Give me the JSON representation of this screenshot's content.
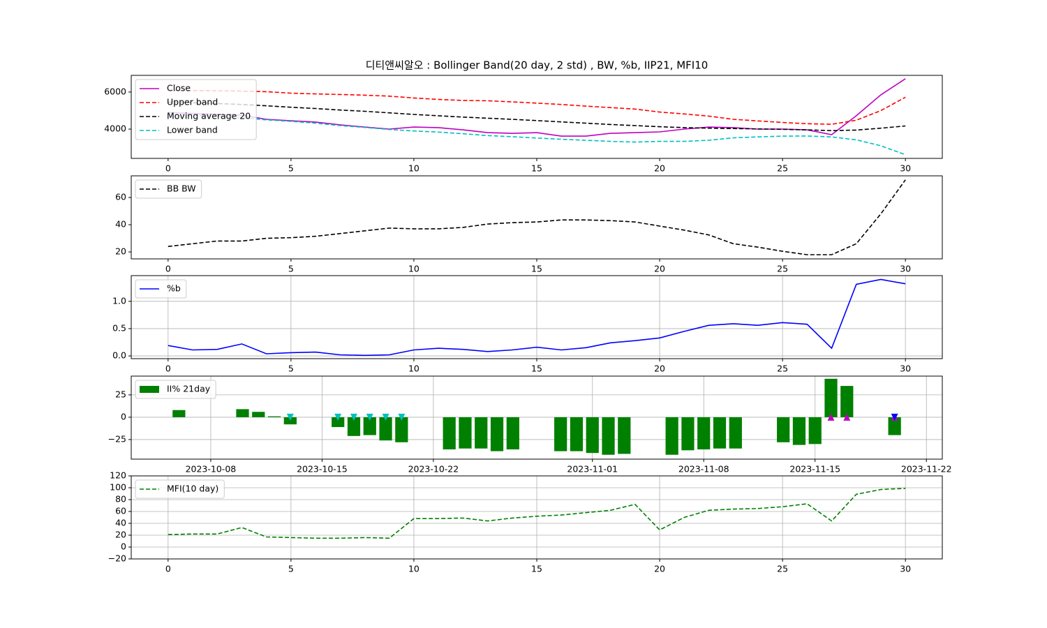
{
  "chart_data": [
    {
      "type": "line",
      "title": "디티앤씨알오 : Bollinger Band(20 day, 2 std) , BW, %b, IIP21, MFI10",
      "x": [
        0,
        1,
        2,
        3,
        4,
        5,
        6,
        7,
        8,
        9,
        10,
        11,
        12,
        13,
        14,
        15,
        16,
        17,
        18,
        19,
        20,
        21,
        22,
        23,
        24,
        25,
        26,
        27,
        28,
        29,
        30
      ],
      "xlim": [
        -1.5,
        31.5
      ],
      "xticks": [
        0,
        5,
        10,
        15,
        20,
        25,
        30
      ],
      "ylim": [
        2420,
        6900
      ],
      "yticks": [
        4000,
        6000
      ],
      "grid": false,
      "legend": "upper left",
      "series": [
        {
          "name": "Close",
          "color": "#bf00bf",
          "linestyle": "solid",
          "values": [
            4900,
            4850,
            4800,
            4750,
            4530,
            4450,
            4380,
            4230,
            4110,
            4000,
            4110,
            4080,
            3960,
            3810,
            3770,
            3810,
            3620,
            3620,
            3770,
            3810,
            3850,
            4000,
            4110,
            4080,
            4000,
            4000,
            3960,
            3700,
            4720,
            5850,
            6720
          ]
        },
        {
          "name": "Upper band",
          "color": "#ff0000",
          "linestyle": "dashed",
          "values": [
            6100,
            6080,
            6070,
            6050,
            6020,
            5940,
            5900,
            5870,
            5830,
            5780,
            5680,
            5600,
            5550,
            5530,
            5470,
            5400,
            5330,
            5240,
            5160,
            5080,
            4920,
            4820,
            4700,
            4530,
            4440,
            4360,
            4290,
            4260,
            4480,
            5000,
            5720
          ]
        },
        {
          "name": "Moving average 20",
          "color": "#000000",
          "linestyle": "dashed",
          "values": [
            5450,
            5420,
            5380,
            5330,
            5260,
            5180,
            5110,
            5030,
            4960,
            4880,
            4790,
            4720,
            4650,
            4590,
            4530,
            4460,
            4390,
            4320,
            4250,
            4190,
            4130,
            4080,
            4050,
            4030,
            4010,
            3990,
            3960,
            3920,
            3950,
            4050,
            4170
          ]
        },
        {
          "name": "Lower band",
          "color": "#00bfbf",
          "linestyle": "dashed",
          "values": [
            4800,
            4760,
            4690,
            4610,
            4500,
            4420,
            4320,
            4190,
            4090,
            3980,
            3900,
            3840,
            3750,
            3650,
            3590,
            3520,
            3450,
            3400,
            3340,
            3300,
            3340,
            3340,
            3400,
            3530,
            3580,
            3620,
            3630,
            3580,
            3420,
            3100,
            2620
          ]
        }
      ]
    },
    {
      "type": "line",
      "x": [
        0,
        1,
        2,
        3,
        4,
        5,
        6,
        7,
        8,
        9,
        10,
        11,
        12,
        13,
        14,
        15,
        16,
        17,
        18,
        19,
        20,
        21,
        22,
        23,
        24,
        25,
        26,
        27,
        28,
        29,
        30
      ],
      "xlim": [
        -1.5,
        31.5
      ],
      "xticks": [
        0,
        5,
        10,
        15,
        20,
        25,
        30
      ],
      "ylim": [
        14.9,
        75.9
      ],
      "yticks": [
        20,
        40,
        60
      ],
      "grid": false,
      "legend": "upper left",
      "series": [
        {
          "name": "BB BW",
          "color": "#000000",
          "linestyle": "dashed",
          "values": [
            24,
            26,
            28,
            28,
            30,
            30.5,
            31.5,
            33.5,
            35.5,
            37.5,
            37,
            37,
            38,
            40.5,
            41.5,
            42,
            43.5,
            43.5,
            43,
            42,
            39,
            36,
            32.5,
            26,
            23.5,
            20.5,
            18,
            18,
            26,
            48,
            73
          ]
        }
      ]
    },
    {
      "type": "line",
      "x": [
        0,
        1,
        2,
        3,
        4,
        5,
        6,
        7,
        8,
        9,
        10,
        11,
        12,
        13,
        14,
        15,
        16,
        17,
        18,
        19,
        20,
        21,
        22,
        23,
        24,
        25,
        26,
        27,
        28,
        29,
        30
      ],
      "xlim": [
        -1.5,
        31.5
      ],
      "xticks": [
        0,
        5,
        10,
        15,
        20,
        25,
        30
      ],
      "ylim": [
        -0.05,
        1.47
      ],
      "yticks": [
        {
          "value": 0,
          "label": "0.0"
        },
        {
          "value": 0.5,
          "label": "0.5"
        },
        {
          "value": 1,
          "label": "1.0"
        }
      ],
      "grid": true,
      "legend": "upper left",
      "series": [
        {
          "name": "%b",
          "color": "#0000ff",
          "linestyle": "solid",
          "values": [
            0.19,
            0.11,
            0.12,
            0.22,
            0.04,
            0.06,
            0.07,
            0.02,
            0.01,
            0.02,
            0.11,
            0.14,
            0.12,
            0.08,
            0.11,
            0.16,
            0.11,
            0.15,
            0.24,
            0.28,
            0.33,
            0.45,
            0.56,
            0.59,
            0.56,
            0.61,
            0.58,
            0.14,
            1.31,
            1.4,
            1.32
          ]
        }
      ]
    },
    {
      "type": "bar",
      "xdate": true,
      "x": [
        "2023-10-06",
        "2023-10-10",
        "2023-10-11",
        "2023-10-12",
        "2023-10-13",
        "2023-10-16",
        "2023-10-17",
        "2023-10-18",
        "2023-10-19",
        "2023-10-20",
        "2023-10-23",
        "2023-10-24",
        "2023-10-25",
        "2023-10-26",
        "2023-10-27",
        "2023-10-30",
        "2023-10-31",
        "2023-11-01",
        "2023-11-02",
        "2023-11-03",
        "2023-11-06",
        "2023-11-07",
        "2023-11-08",
        "2023-11-09",
        "2023-11-10",
        "2023-11-13",
        "2023-11-14",
        "2023-11-15",
        "2023-11-16",
        "2023-11-17",
        "2023-11-20"
      ],
      "xlim": [
        "2023-10-03",
        "2023-11-23"
      ],
      "xticks": [
        "2023-10-08",
        "2023-10-15",
        "2023-10-22",
        "2023-11-01",
        "2023-11-08",
        "2023-11-15",
        "2023-11-22"
      ],
      "ylim": [
        -46.9,
        46
      ],
      "yticks": [
        {
          "value": -25,
          "label": "−25"
        },
        0,
        25
      ],
      "grid": true,
      "legend": "upper left",
      "series": [
        {
          "name": "II% 21day",
          "color": "#008000",
          "values": [
            8,
            9,
            6,
            1,
            -8,
            -11,
            -21,
            -20,
            -26,
            -28,
            -36,
            -35,
            -35,
            -38,
            -36,
            -38,
            -38,
            -40,
            -42,
            -41,
            -42,
            -37,
            -36,
            -35,
            -35,
            -28,
            -31,
            -30,
            43,
            35,
            -20
          ]
        }
      ],
      "markers": [
        {
          "type": "scatter",
          "marker": "down",
          "color": "#00bfbf",
          "x": [
            "2023-10-13",
            "2023-10-16",
            "2023-10-17",
            "2023-10-18",
            "2023-10-19",
            "2023-10-20"
          ],
          "values": [
            0,
            0,
            0,
            0,
            0,
            0
          ]
        },
        {
          "type": "scatter",
          "marker": "up",
          "color": "#bf00bf",
          "x": [
            "2023-11-16",
            "2023-11-17",
            "2023-11-20"
          ],
          "values": [
            0,
            0,
            0
          ]
        },
        {
          "type": "scatter",
          "marker": "down",
          "color": "#0000ff",
          "x": [
            "2023-11-20"
          ],
          "values": [
            0
          ]
        }
      ]
    },
    {
      "type": "line",
      "x": [
        0,
        1,
        2,
        3,
        4,
        5,
        6,
        7,
        8,
        9,
        10,
        11,
        12,
        13,
        14,
        15,
        16,
        17,
        18,
        19,
        20,
        21,
        22,
        23,
        24,
        25,
        26,
        27,
        28,
        29,
        30
      ],
      "xlim": [
        -1.5,
        31.5
      ],
      "xticks": [
        0,
        5,
        10,
        15,
        20,
        25,
        30
      ],
      "ylim": [
        -20,
        120
      ],
      "yticks": [
        {
          "value": -20,
          "label": "−20"
        },
        0,
        20,
        40,
        60,
        80,
        100,
        120
      ],
      "grid": true,
      "legend": "upper left",
      "series": [
        {
          "name": "MFI(10 day)",
          "color": "#008000",
          "linestyle": "dashed",
          "values": [
            21,
            22,
            22,
            33,
            17,
            16,
            15,
            15,
            16,
            15,
            48,
            48,
            49,
            44,
            49,
            52,
            54,
            58,
            62,
            72,
            29,
            50,
            62,
            64,
            65,
            68,
            73,
            44,
            89,
            97,
            99
          ]
        }
      ]
    }
  ]
}
